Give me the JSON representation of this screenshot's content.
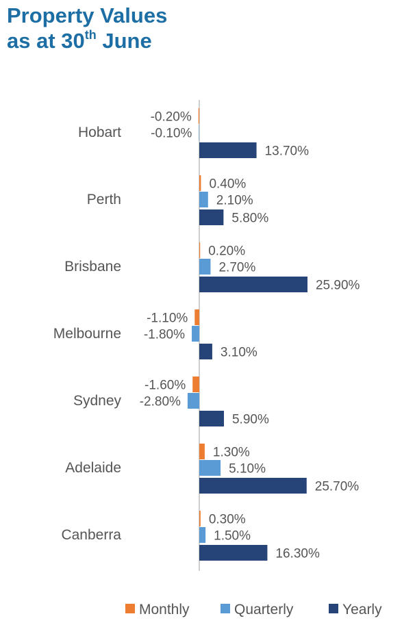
{
  "title_line1": "Property Values",
  "title_line2_pre": "as at 30",
  "title_sup": "th",
  "title_line2_post": " June",
  "colors": {
    "title": "#1c6ea4",
    "Monthly": "#ed7d31",
    "Quarterly": "#5b9bd5",
    "Yearly": "#264478",
    "axis": "#bfbfbf",
    "text": "#555555"
  },
  "chart_data": {
    "type": "bar",
    "orientation": "horizontal",
    "title": "Property Values as at 30th June",
    "categories": [
      "Hobart",
      "Perth",
      "Brisbane",
      "Melbourne",
      "Sydney",
      "Adelaide",
      "Canberra"
    ],
    "series": [
      {
        "name": "Monthly",
        "values": [
          -0.2,
          0.4,
          0.2,
          -1.1,
          -1.6,
          1.3,
          0.3
        ],
        "labels": [
          "-0.20%",
          "0.40%",
          "0.20%",
          "-1.10%",
          "-1.60%",
          "1.30%",
          "0.30%"
        ]
      },
      {
        "name": "Quarterly",
        "values": [
          -0.1,
          2.1,
          2.7,
          -1.8,
          -2.8,
          5.1,
          1.5
        ],
        "labels": [
          "-0.10%",
          "2.10%",
          "2.70%",
          "-1.80%",
          "-2.80%",
          "5.10%",
          "1.50%"
        ]
      },
      {
        "name": "Yearly",
        "values": [
          13.7,
          5.8,
          25.9,
          3.1,
          5.9,
          25.7,
          16.3
        ],
        "labels": [
          "13.70%",
          "5.80%",
          "25.90%",
          "3.10%",
          "5.90%",
          "25.70%",
          "16.30%"
        ]
      }
    ],
    "xlabel": "",
    "ylabel": "",
    "grid": false,
    "legend": "bottom"
  }
}
